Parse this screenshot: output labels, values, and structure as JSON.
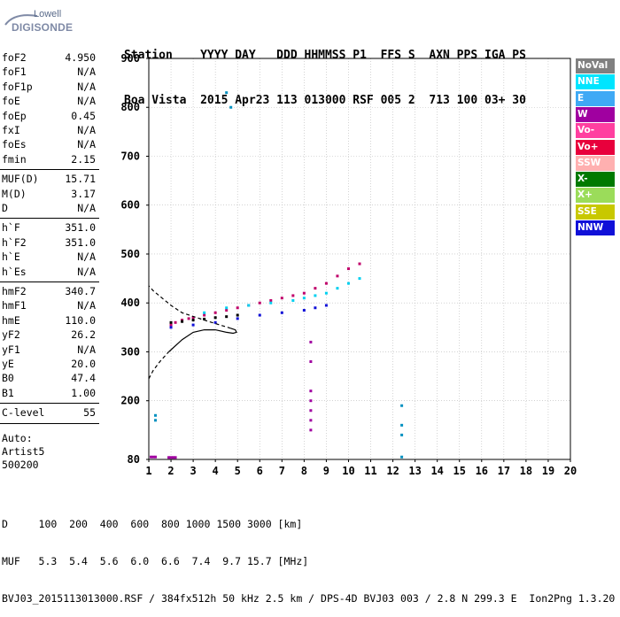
{
  "logo": {
    "line1": "Lowell",
    "line2": "DIGISONDE"
  },
  "header": {
    "labels": "Station    YYYY DAY   DDD HHMMSS P1  FFS S  AXN PPS IGA PS",
    "values": "Boa Vista  2015 Apr23 113 013000 RSF 005 2  713 100 03+ 30"
  },
  "params": [
    {
      "name": "foF2",
      "value": "4.950"
    },
    {
      "name": "foF1",
      "value": "N/A"
    },
    {
      "name": "foF1p",
      "value": "N/A"
    },
    {
      "name": "foE",
      "value": "N/A"
    },
    {
      "name": "foEp",
      "value": "0.45"
    },
    {
      "name": "fxI",
      "value": "N/A"
    },
    {
      "name": "foEs",
      "value": "N/A"
    },
    {
      "name": "fmin",
      "value": "2.15"
    },
    {
      "name": "MUF(D)",
      "value": "15.71"
    },
    {
      "name": "M(D)",
      "value": "3.17"
    },
    {
      "name": "D",
      "value": "N/A"
    },
    {
      "name": "h`F",
      "value": "351.0"
    },
    {
      "name": "h`F2",
      "value": "351.0"
    },
    {
      "name": "h`E",
      "value": "N/A"
    },
    {
      "name": "h`Es",
      "value": "N/A"
    },
    {
      "name": "hmF2",
      "value": "340.7"
    },
    {
      "name": "hmF1",
      "value": "N/A"
    },
    {
      "name": "hmE",
      "value": "110.0"
    },
    {
      "name": "yF2",
      "value": "26.2"
    },
    {
      "name": "yF1",
      "value": "N/A"
    },
    {
      "name": "yE",
      "value": "20.0"
    },
    {
      "name": "B0",
      "value": "47.4"
    },
    {
      "name": "B1",
      "value": "1.00"
    },
    {
      "name": "C-level",
      "value": "55"
    }
  ],
  "auto": {
    "line1": "Auto:",
    "line2": "Artist5",
    "line3": "500200"
  },
  "legend": [
    {
      "label": "NoVal",
      "bg": "#808080",
      "fg": "#ffffff"
    },
    {
      "label": "NNE",
      "bg": "#00e5ff",
      "fg": "#ffffff"
    },
    {
      "label": "E",
      "bg": "#3fa9f5",
      "fg": "#ffffff"
    },
    {
      "label": "W",
      "bg": "#a000a0",
      "fg": "#ffffff"
    },
    {
      "label": "Vo-",
      "bg": "#ff3fa0",
      "fg": "#ffffff"
    },
    {
      "label": "Vo+",
      "bg": "#e8003c",
      "fg": "#ffffff"
    },
    {
      "label": "SSW",
      "bg": "#ffb0b0",
      "fg": "#ffffff"
    },
    {
      "label": "X-",
      "bg": "#007a00",
      "fg": "#ffffff"
    },
    {
      "label": "X+",
      "bg": "#9bdc5a",
      "fg": "#ffffff"
    },
    {
      "label": "SSE",
      "bg": "#c8c800",
      "fg": "#ffffff"
    },
    {
      "label": "NNW",
      "bg": "#1010d8",
      "fg": "#ffffff"
    }
  ],
  "footer": {
    "line1": "D     100  200  400  600  800 1000 1500 3000 [km]",
    "line2": "MUF   5.3  5.4  5.6  6.0  6.6  7.4  9.7 15.7 [MHz]",
    "line3": "BVJ03_2015113013000.RSF / 384fx512h 50 kHz 2.5 km / DPS-4D BVJ03 003 / 2.8 N 299.3 E  Ion2Png 1.3.20"
  },
  "chart_data": {
    "type": "scatter",
    "title": "",
    "xlabel": "",
    "ylabel": "",
    "xlim": [
      1,
      20
    ],
    "ylim": [
      80,
      900
    ],
    "x_ticks": [
      1,
      2,
      3,
      4,
      5,
      6,
      7,
      8,
      9,
      10,
      11,
      12,
      13,
      14,
      15,
      16,
      17,
      18,
      19,
      20
    ],
    "y_ticks": [
      80,
      200,
      300,
      400,
      500,
      600,
      700,
      800,
      900
    ],
    "grid": true,
    "series": [
      {
        "name": "O-trace (W/Vo-/Vo+)",
        "color": "#c0006a",
        "x": [
          2.0,
          2.2,
          2.5,
          2.8,
          3.0,
          3.5,
          4.0,
          4.5,
          5.0,
          5.5,
          6.0,
          6.5,
          7.0,
          7.5,
          8.0,
          8.5,
          9.0,
          9.5,
          10.0,
          10.5
        ],
        "y": [
          355,
          360,
          365,
          368,
          370,
          375,
          380,
          385,
          390,
          395,
          400,
          405,
          410,
          415,
          420,
          430,
          440,
          455,
          470,
          480
        ]
      },
      {
        "name": "X-trace (NNE/E)",
        "color": "#00d0f0",
        "x": [
          3.5,
          4.5,
          5.5,
          6.5,
          7.5,
          8.0,
          8.5,
          9.0,
          9.5,
          10.0,
          10.5
        ],
        "y": [
          380,
          390,
          395,
          400,
          405,
          410,
          415,
          420,
          430,
          440,
          450
        ]
      },
      {
        "name": "NNW",
        "color": "#1010d8",
        "x": [
          2.0,
          3.0,
          4.0,
          5.0,
          6.0,
          7.0,
          8.0,
          8.5,
          9.0
        ],
        "y": [
          350,
          355,
          360,
          368,
          375,
          380,
          385,
          390,
          395
        ]
      },
      {
        "name": "NoVal",
        "color": "#000000",
        "x": [
          2.0,
          2.5,
          3.0,
          3.5,
          4.0,
          4.5,
          5.0
        ],
        "y": [
          360,
          362,
          365,
          367,
          370,
          372,
          375
        ]
      },
      {
        "name": "Es at 8.3 MHz",
        "color": "#a000a0",
        "x": [
          8.3,
          8.3,
          8.3,
          8.3,
          8.3,
          8.3,
          8.3
        ],
        "y": [
          140,
          160,
          180,
          200,
          220,
          280,
          320
        ]
      },
      {
        "name": "Low-height echoes",
        "color": "#a000a0",
        "x": [
          1.1,
          1.2,
          1.3,
          1.9,
          2.0,
          2.1,
          2.2
        ],
        "y": [
          85,
          85,
          85,
          84,
          84,
          84,
          84
        ]
      },
      {
        "name": "Other",
        "color": "#0090c0",
        "x": [
          1.3,
          1.3,
          4.5,
          4.7,
          12.4,
          12.4,
          12.4,
          12.4
        ],
        "y": [
          170,
          160,
          830,
          800,
          190,
          150,
          130,
          85
        ]
      }
    ],
    "profile": {
      "name": "Electron density profile",
      "color": "#000000",
      "solid": {
        "x": [
          1.9,
          2.5,
          3.0,
          3.5,
          4.0,
          4.5,
          4.8,
          4.95,
          4.9,
          4.7
        ],
        "y": [
          300,
          325,
          340,
          345,
          345,
          340,
          338,
          340,
          345,
          348
        ]
      },
      "dashed_lower": {
        "x": [
          1.0,
          1.2,
          1.5,
          1.8,
          1.9
        ],
        "y": [
          245,
          262,
          280,
          295,
          300
        ]
      },
      "dashed_upper": {
        "x": [
          4.7,
          3.5,
          2.5,
          2.0,
          1.6,
          1.2,
          1.0
        ],
        "y": [
          348,
          365,
          380,
          395,
          410,
          425,
          435
        ]
      }
    }
  }
}
